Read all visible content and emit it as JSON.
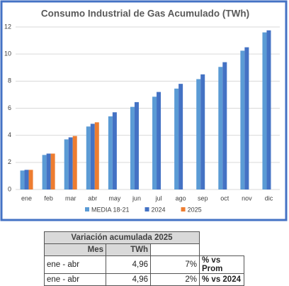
{
  "chart_data": {
    "type": "bar",
    "title": "Consumo Industrial de Gas Acumulado (TWh)",
    "categories": [
      "ene",
      "feb",
      "mar",
      "abr",
      "may",
      "jun",
      "jul",
      "ago",
      "sep",
      "oct",
      "nov",
      "dic"
    ],
    "series": [
      {
        "name": "MEDIA 18-21",
        "color": "#5b9bd5",
        "values": [
          1.4,
          2.55,
          3.7,
          4.65,
          5.4,
          6.1,
          6.85,
          7.45,
          8.15,
          9.05,
          10.25,
          11.6
        ]
      },
      {
        "name": "2024",
        "color": "#4472c4",
        "values": [
          1.45,
          2.65,
          3.85,
          4.85,
          5.7,
          6.45,
          7.2,
          7.8,
          8.5,
          9.4,
          10.5,
          11.75
        ]
      },
      {
        "name": "2025",
        "color": "#ed7d31",
        "values": [
          1.45,
          2.65,
          3.95,
          4.96,
          null,
          null,
          null,
          null,
          null,
          null,
          null,
          null
        ]
      }
    ],
    "ylim": [
      0,
      12
    ],
    "yticks": [
      0,
      2,
      4,
      6,
      8,
      10,
      12
    ],
    "grid": true,
    "legend": "bottom"
  },
  "table": {
    "title": "Variación acumulada 2025",
    "header": [
      "Mes",
      "TWh"
    ],
    "rows": [
      [
        "ene - abr",
        "4,96",
        "7%",
        "% vs Prom"
      ],
      [
        "ene - abr",
        "4,96",
        "2%",
        "% vs 2024"
      ]
    ]
  }
}
